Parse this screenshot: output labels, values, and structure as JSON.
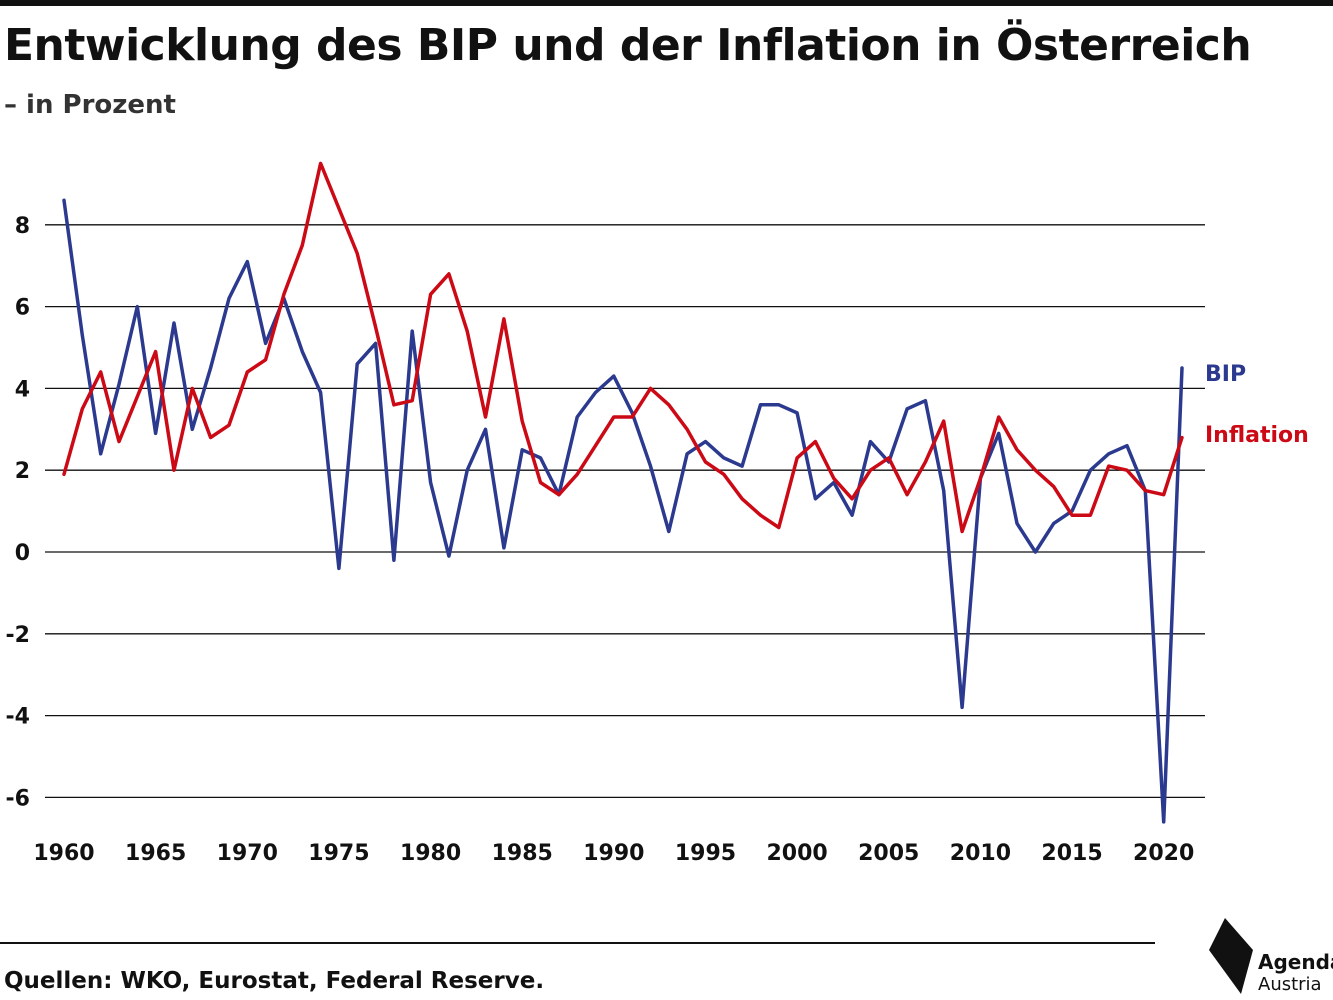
{
  "title": "Entwicklung des BIP und der Inflation in Österreich",
  "subtitle": "– in Prozent",
  "source": "Quellen: WKO, Eurostat, Federal Reserve.",
  "logo": {
    "name": "Agenda",
    "sub": "Austria",
    "icon": "agenda-austria-logo-icon"
  },
  "colors": {
    "bip": "#2b3a8f",
    "inflation": "#cc0a16",
    "grid": "#111111"
  },
  "chart_data": {
    "type": "line",
    "xlim": [
      1960,
      2021
    ],
    "ylim": [
      -6.6,
      9.5
    ],
    "yticks": [
      -6,
      -4,
      -2,
      0,
      2,
      4,
      6,
      8
    ],
    "xticks": [
      1960,
      1965,
      1970,
      1975,
      1980,
      1985,
      1990,
      1995,
      2000,
      2005,
      2010,
      2015,
      2020
    ],
    "grid": true,
    "legend": "inline-right",
    "x": [
      1960,
      1961,
      1962,
      1963,
      1964,
      1965,
      1966,
      1967,
      1968,
      1969,
      1970,
      1971,
      1972,
      1973,
      1974,
      1975,
      1976,
      1977,
      1978,
      1979,
      1980,
      1981,
      1982,
      1983,
      1984,
      1985,
      1986,
      1987,
      1988,
      1989,
      1990,
      1991,
      1992,
      1993,
      1994,
      1995,
      1996,
      1997,
      1998,
      1999,
      2000,
      2001,
      2002,
      2003,
      2004,
      2005,
      2006,
      2007,
      2008,
      2009,
      2010,
      2011,
      2012,
      2013,
      2014,
      2015,
      2016,
      2017,
      2018,
      2019,
      2020,
      2021
    ],
    "series": [
      {
        "name": "BIP",
        "color": "#2b3a8f",
        "values": [
          8.6,
          5.3,
          2.4,
          4.1,
          6.0,
          2.9,
          5.6,
          3.0,
          4.5,
          6.2,
          7.1,
          5.1,
          6.2,
          4.9,
          3.9,
          -0.4,
          4.6,
          5.1,
          -0.2,
          5.4,
          1.7,
          -0.1,
          2.0,
          3.0,
          0.1,
          2.5,
          2.3,
          1.4,
          3.3,
          3.9,
          4.3,
          3.4,
          2.1,
          0.5,
          2.4,
          2.7,
          2.3,
          2.1,
          3.6,
          3.6,
          3.4,
          1.3,
          1.7,
          0.9,
          2.7,
          2.2,
          3.5,
          3.7,
          1.5,
          -3.8,
          1.8,
          2.9,
          0.7,
          0.0,
          0.7,
          1.0,
          2.0,
          2.4,
          2.6,
          1.5,
          -6.6,
          4.5
        ]
      },
      {
        "name": "Inflation",
        "color": "#cc0a16",
        "values": [
          1.9,
          3.5,
          4.4,
          2.7,
          3.8,
          4.9,
          2.0,
          4.0,
          2.8,
          3.1,
          4.4,
          4.7,
          6.3,
          7.5,
          9.5,
          8.4,
          7.3,
          5.5,
          3.6,
          3.7,
          6.3,
          6.8,
          5.4,
          3.3,
          5.7,
          3.2,
          1.7,
          1.4,
          1.9,
          2.6,
          3.3,
          3.3,
          4.0,
          3.6,
          3.0,
          2.2,
          1.9,
          1.3,
          0.9,
          0.6,
          2.3,
          2.7,
          1.8,
          1.3,
          2.0,
          2.3,
          1.4,
          2.2,
          3.2,
          0.5,
          1.8,
          3.3,
          2.5,
          2.0,
          1.6,
          0.9,
          0.9,
          2.1,
          2.0,
          1.5,
          1.4,
          2.8
        ]
      }
    ]
  }
}
